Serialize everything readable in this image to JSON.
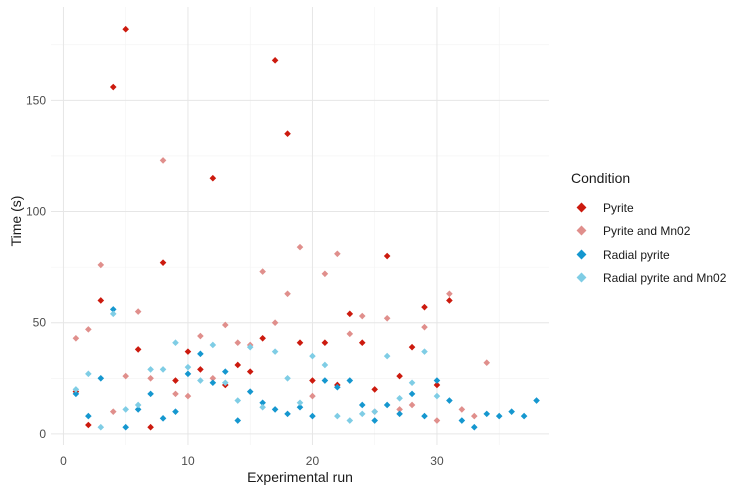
{
  "chart_data": {
    "type": "scatter",
    "title": "",
    "xlabel": "Experimental run",
    "ylabel": "Time (s)",
    "xlim": [
      -1,
      39
    ],
    "ylim": [
      -5,
      192
    ],
    "x_ticks": [
      0,
      10,
      20,
      30
    ],
    "y_ticks": [
      0,
      50,
      100,
      150
    ],
    "grid": true,
    "legend_title": "Condition",
    "legend_position": "right",
    "series": [
      {
        "name": "Pyrite",
        "color": "#cc1a0e",
        "points": [
          [
            1,
            19
          ],
          [
            2,
            4
          ],
          [
            3,
            60
          ],
          [
            4,
            156
          ],
          [
            5,
            182
          ],
          [
            6,
            38
          ],
          [
            7,
            3
          ],
          [
            8,
            77
          ],
          [
            9,
            24
          ],
          [
            10,
            37
          ],
          [
            11,
            29
          ],
          [
            12,
            115
          ],
          [
            13,
            22
          ],
          [
            14,
            31
          ],
          [
            15,
            28
          ],
          [
            16,
            43
          ],
          [
            17,
            168
          ],
          [
            18,
            135
          ],
          [
            19,
            41
          ],
          [
            20,
            24
          ],
          [
            21,
            41
          ],
          [
            22,
            22
          ],
          [
            23,
            54
          ],
          [
            24,
            41
          ],
          [
            25,
            20
          ],
          [
            26,
            80
          ],
          [
            27,
            26
          ],
          [
            28,
            39
          ],
          [
            29,
            57
          ],
          [
            30,
            22
          ],
          [
            31,
            60
          ]
        ]
      },
      {
        "name": "Pyrite and Mn02",
        "color": "#e08f8c",
        "points": [
          [
            1,
            43
          ],
          [
            2,
            47
          ],
          [
            3,
            76
          ],
          [
            4,
            10
          ],
          [
            5,
            26
          ],
          [
            6,
            55
          ],
          [
            7,
            25
          ],
          [
            8,
            123
          ],
          [
            9,
            18
          ],
          [
            10,
            17
          ],
          [
            11,
            44
          ],
          [
            12,
            25
          ],
          [
            13,
            49
          ],
          [
            14,
            41
          ],
          [
            15,
            40
          ],
          [
            16,
            73
          ],
          [
            17,
            50
          ],
          [
            18,
            63
          ],
          [
            19,
            84
          ],
          [
            20,
            17
          ],
          [
            21,
            72
          ],
          [
            22,
            81
          ],
          [
            23,
            45
          ],
          [
            24,
            53
          ],
          [
            25,
            10
          ],
          [
            26,
            52
          ],
          [
            27,
            11
          ],
          [
            28,
            13
          ],
          [
            29,
            48
          ],
          [
            30,
            6
          ],
          [
            31,
            63
          ],
          [
            32,
            11
          ],
          [
            33,
            8
          ],
          [
            34,
            32
          ]
        ]
      },
      {
        "name": "Radial pyrite",
        "color": "#1597cf",
        "points": [
          [
            1,
            18
          ],
          [
            2,
            8
          ],
          [
            3,
            25
          ],
          [
            4,
            56
          ],
          [
            5,
            3
          ],
          [
            6,
            11
          ],
          [
            7,
            18
          ],
          [
            8,
            7
          ],
          [
            9,
            10
          ],
          [
            10,
            27
          ],
          [
            11,
            36
          ],
          [
            12,
            23
          ],
          [
            13,
            28
          ],
          [
            14,
            6
          ],
          [
            15,
            19
          ],
          [
            16,
            14
          ],
          [
            17,
            11
          ],
          [
            18,
            9
          ],
          [
            19,
            12
          ],
          [
            20,
            8
          ],
          [
            21,
            24
          ],
          [
            22,
            21
          ],
          [
            23,
            24
          ],
          [
            24,
            13
          ],
          [
            25,
            6
          ],
          [
            26,
            13
          ],
          [
            27,
            9
          ],
          [
            28,
            18
          ],
          [
            29,
            8
          ],
          [
            30,
            24
          ],
          [
            31,
            15
          ],
          [
            32,
            6
          ],
          [
            33,
            3
          ],
          [
            34,
            9
          ],
          [
            35,
            8
          ],
          [
            36,
            10
          ],
          [
            37,
            8
          ],
          [
            38,
            15
          ]
        ]
      },
      {
        "name": "Radial pyrite and Mn02",
        "color": "#7fcde5",
        "points": [
          [
            1,
            20
          ],
          [
            2,
            27
          ],
          [
            3,
            3
          ],
          [
            4,
            54
          ],
          [
            5,
            11
          ],
          [
            6,
            13
          ],
          [
            7,
            29
          ],
          [
            8,
            29
          ],
          [
            9,
            41
          ],
          [
            10,
            30
          ],
          [
            11,
            24
          ],
          [
            12,
            40
          ],
          [
            13,
            23
          ],
          [
            14,
            15
          ],
          [
            15,
            39
          ],
          [
            16,
            12
          ],
          [
            17,
            37
          ],
          [
            18,
            25
          ],
          [
            19,
            14
          ],
          [
            20,
            35
          ],
          [
            21,
            31
          ],
          [
            22,
            8
          ],
          [
            23,
            6
          ],
          [
            24,
            9
          ],
          [
            25,
            10
          ],
          [
            26,
            35
          ],
          [
            27,
            16
          ],
          [
            28,
            23
          ],
          [
            29,
            37
          ],
          [
            30,
            17
          ]
        ]
      }
    ]
  }
}
